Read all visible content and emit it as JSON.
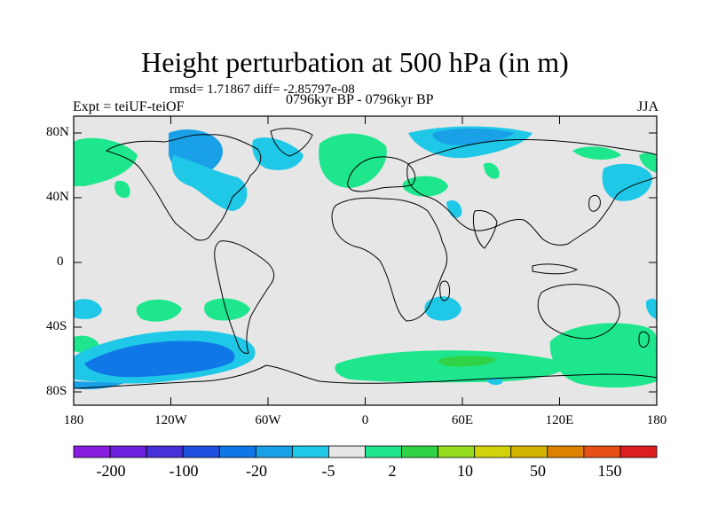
{
  "header": {
    "title": "Height perturbation at 500 hPa (in m)",
    "stats": "rmsd= 1.71867 diff= -2.85797e-08",
    "experiment": "Expt = teiUF-teiOF",
    "period": "0796kyr BP - 0796kyr BP",
    "season": "JJA"
  },
  "axes": {
    "y_ticks": [
      "80N",
      "40N",
      "0",
      "40S",
      "80S"
    ],
    "x_ticks": [
      "180",
      "120W",
      "60W",
      "0",
      "60E",
      "120E",
      "180"
    ]
  },
  "colorbar": {
    "labels": [
      "-200",
      "-100",
      "-20",
      "-5",
      "2",
      "10",
      "50",
      "150"
    ],
    "colors": [
      "#8a1ee0",
      "#6a20dc",
      "#4630d8",
      "#2050e0",
      "#1078e6",
      "#1aa0e6",
      "#1ec8e6",
      "#e6e6e6",
      "#1ee68c",
      "#32d246",
      "#96dc1e",
      "#d2d20a",
      "#d2b400",
      "#dc8200",
      "#e65014",
      "#dc1e1e"
    ]
  },
  "chart_data": {
    "type": "map",
    "projection": "cylindrical equidistant",
    "lon_range": [
      -180,
      180
    ],
    "lat_range": [
      -90,
      90
    ],
    "variable": "Height perturbation at 500 hPa (m)",
    "palette_background": "#e6e6e6",
    "anomaly_regions": [
      {
        "color_class": "positive",
        "region": "Arctic Atlantic / Greenland-Iceland area"
      },
      {
        "color_class": "negative",
        "region": "Eurasian Arctic"
      },
      {
        "color_class": "negative",
        "region": "Eastern North America / Great Lakes"
      },
      {
        "color_class": "negative",
        "region": "North Pacific near Japan"
      },
      {
        "color_class": "strong-negative",
        "region": "South Pacific near 60S"
      },
      {
        "color_class": "positive",
        "region": "Southern Ocean south of Africa"
      },
      {
        "color_class": "positive",
        "region": "Southern Ocean south of Australia"
      }
    ]
  }
}
